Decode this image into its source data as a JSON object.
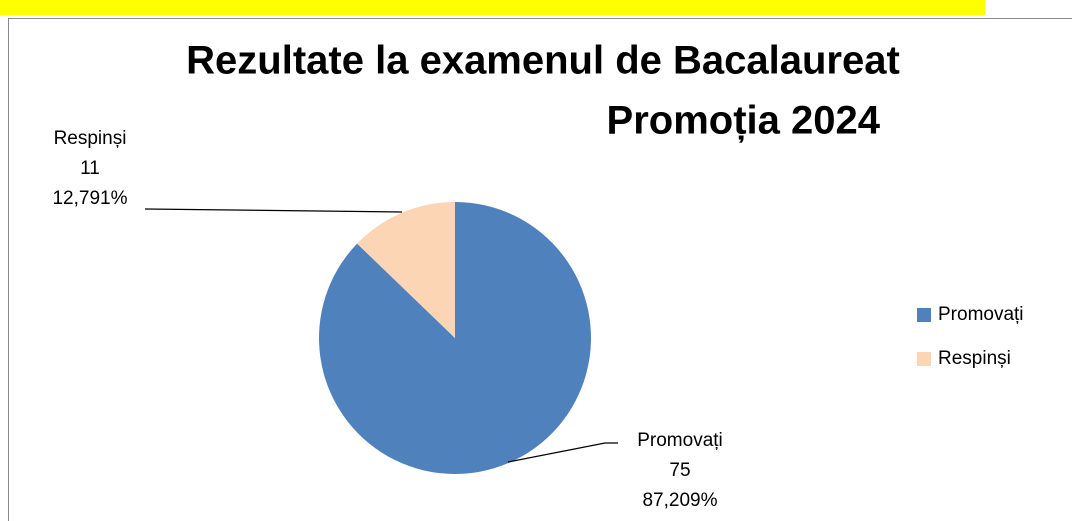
{
  "chart_data": {
    "type": "pie",
    "title": [
      "Rezultate la examenul de Bacalaureat",
      "Promoția 2024"
    ],
    "categories": [
      "Promovați",
      "Respinși"
    ],
    "values": [
      75,
      11
    ],
    "percent_labels": [
      "87,209%",
      "12,791%"
    ],
    "colors": [
      "#4f81bd",
      "#fcd5b5"
    ],
    "legend": "right"
  }
}
